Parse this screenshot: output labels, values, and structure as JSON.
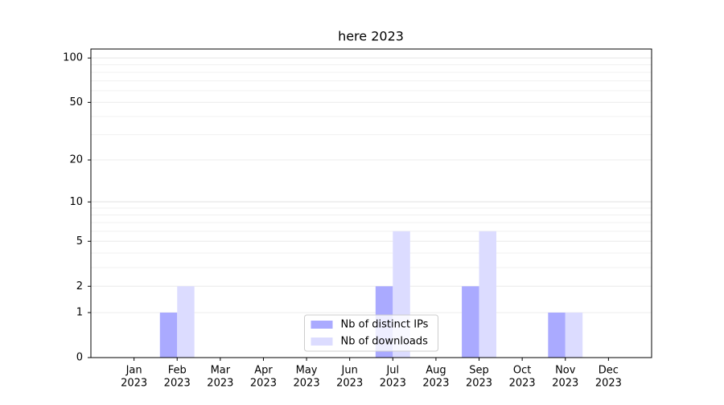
{
  "chart_data": {
    "type": "bar",
    "title": "here 2023",
    "categories": [
      [
        "Jan",
        "2023"
      ],
      [
        "Feb",
        "2023"
      ],
      [
        "Mar",
        "2023"
      ],
      [
        "Apr",
        "2023"
      ],
      [
        "May",
        "2023"
      ],
      [
        "Jun",
        "2023"
      ],
      [
        "Jul",
        "2023"
      ],
      [
        "Aug",
        "2023"
      ],
      [
        "Sep",
        "2023"
      ],
      [
        "Oct",
        "2023"
      ],
      [
        "Nov",
        "2023"
      ],
      [
        "Dec",
        "2023"
      ]
    ],
    "series": [
      {
        "name": "Nb of distinct IPs",
        "color": "#aaaaff",
        "values": [
          0,
          1,
          0,
          0,
          0,
          0,
          2,
          0,
          2,
          0,
          1,
          0
        ]
      },
      {
        "name": "Nb of downloads",
        "color": "#dcdcff",
        "values": [
          0,
          2,
          0,
          0,
          0,
          0,
          6,
          0,
          6,
          0,
          1,
          0
        ]
      }
    ],
    "yscale": "log1p",
    "ylim": [
      0,
      115
    ],
    "yticks": [
      0,
      1,
      2,
      5,
      10,
      20,
      50,
      100
    ],
    "grid": true,
    "legend": "lower center"
  }
}
